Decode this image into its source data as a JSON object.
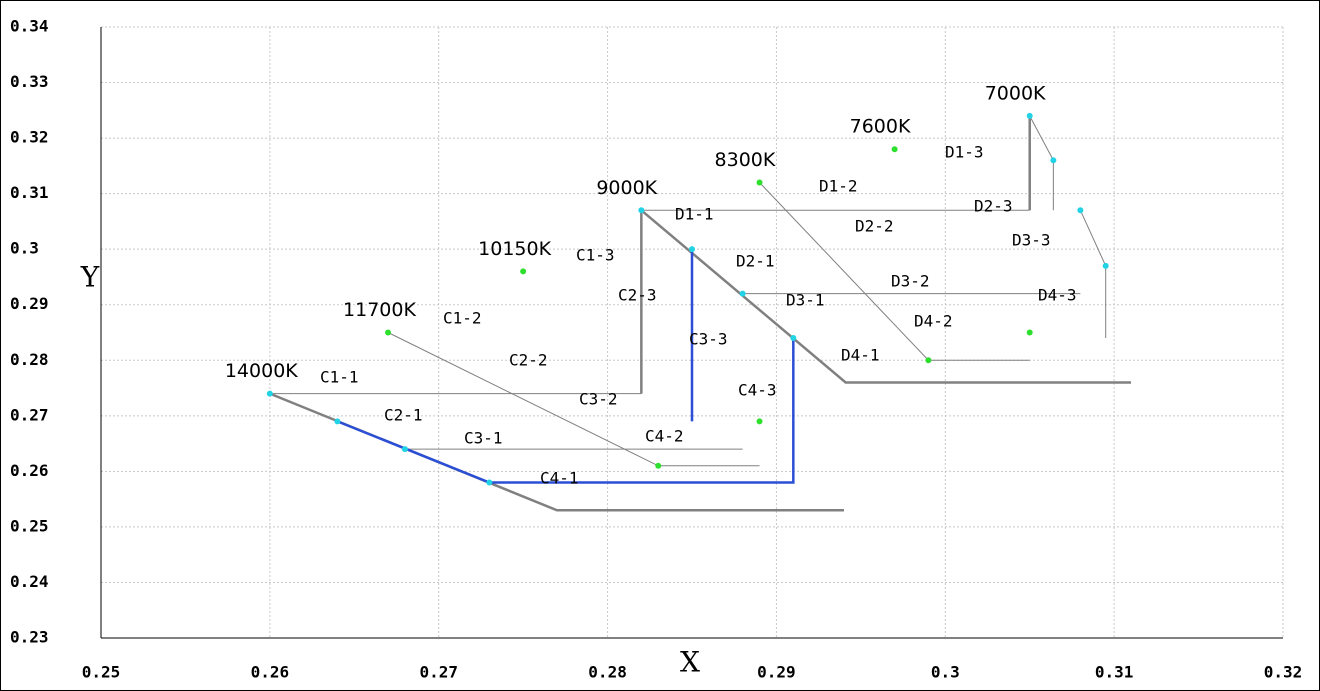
{
  "chart_data": {
    "type": "line",
    "xlabel": "X",
    "ylabel": "Y",
    "xlim": [
      0.25,
      0.32
    ],
    "ylim": [
      0.23,
      0.34
    ],
    "xticks": [
      0.25,
      0.26,
      0.27,
      0.28,
      0.29,
      0.3,
      0.31,
      0.32
    ],
    "yticks": [
      0.23,
      0.24,
      0.25,
      0.26,
      0.27,
      0.28,
      0.29,
      0.3,
      0.31,
      0.32,
      0.33,
      0.34
    ],
    "grid": true,
    "series": [
      {
        "mode": "lines",
        "color": "#808080",
        "width": 2.5,
        "x": [
          0.26,
          0.277,
          0.294
        ],
        "values": [
          0.274,
          0.253,
          0.253
        ]
      },
      {
        "mode": "lines",
        "color": "#808080",
        "width": 2.5,
        "x": [
          0.282,
          0.282
        ],
        "values": [
          0.307,
          0.274
        ]
      },
      {
        "mode": "lines",
        "color": "#808080",
        "width": 1,
        "x": [
          0.26,
          0.282
        ],
        "values": [
          0.274,
          0.274
        ]
      },
      {
        "mode": "lines",
        "color": "#808080",
        "width": 2.5,
        "x": [
          0.282,
          0.2941,
          0.311
        ],
        "values": [
          0.307,
          0.276,
          0.276
        ]
      },
      {
        "mode": "lines",
        "color": "#808080",
        "width": 2.5,
        "x": [
          0.305,
          0.305
        ],
        "values": [
          0.324,
          0.307
        ]
      },
      {
        "mode": "lines",
        "color": "#808080",
        "width": 1,
        "x": [
          0.282,
          0.305
        ],
        "values": [
          0.307,
          0.307
        ]
      },
      {
        "mode": "lines",
        "color": "#808080",
        "width": 1,
        "x": [
          0.305,
          0.3064,
          0.3064
        ],
        "values": [
          0.324,
          0.316,
          0.307
        ]
      },
      {
        "mode": "lines",
        "color": "#808080",
        "width": 1,
        "x": [
          0.308,
          0.3095,
          0.3095
        ],
        "values": [
          0.307,
          0.297,
          0.284
        ]
      },
      {
        "mode": "lines",
        "color": "#808080",
        "width": 1,
        "x": [
          0.267,
          0.283,
          0.289
        ],
        "values": [
          0.285,
          0.261,
          0.261
        ]
      },
      {
        "mode": "lines",
        "color": "#808080",
        "width": 1,
        "x": [
          0.289,
          0.299,
          0.305
        ],
        "values": [
          0.312,
          0.28,
          0.28
        ]
      },
      {
        "mode": "lines",
        "color": "#808080",
        "width": 1,
        "x": [
          0.268,
          0.288
        ],
        "values": [
          0.264,
          0.264
        ]
      },
      {
        "mode": "lines",
        "color": "#808080",
        "width": 1,
        "x": [
          0.288,
          0.308
        ],
        "values": [
          0.292,
          0.292
        ]
      },
      {
        "mode": "lines",
        "color": "#2a4fd6",
        "width": 2.5,
        "x": [
          0.264,
          0.273,
          0.291,
          0.291
        ],
        "values": [
          0.269,
          0.258,
          0.258,
          0.284
        ]
      },
      {
        "mode": "lines",
        "color": "#2a4fd6",
        "width": 2.5,
        "x": [
          0.285,
          0.285
        ],
        "values": [
          0.3,
          0.269
        ]
      },
      {
        "mode": "markers",
        "color": "#22d3e6",
        "x": [
          0.26,
          0.264,
          0.268,
          0.273,
          0.282,
          0.285,
          0.288,
          0.291,
          0.305,
          0.3064,
          0.308,
          0.3095
        ],
        "values": [
          0.274,
          0.269,
          0.264,
          0.258,
          0.307,
          0.3,
          0.292,
          0.284,
          0.324,
          0.316,
          0.307,
          0.297
        ],
        "labels": [
          "14000K",
          null,
          null,
          null,
          "9000K",
          null,
          null,
          null,
          "7000K",
          null,
          null,
          null
        ]
      },
      {
        "mode": "markers",
        "color": "#2ee02e",
        "x": [
          0.267,
          0.275,
          0.289,
          0.297,
          0.283,
          0.289,
          0.299,
          0.305
        ],
        "values": [
          0.285,
          0.296,
          0.312,
          0.318,
          0.261,
          0.269,
          0.28,
          0.285
        ],
        "labels": [
          "11700K",
          "10150K",
          "8300K",
          "7600K",
          null,
          null,
          null,
          null
        ]
      }
    ],
    "annotations": [
      "C1-1",
      "C1-2",
      "C1-3",
      "C2-1",
      "C2-2",
      "C2-3",
      "C3-1",
      "C3-2",
      "C3-3",
      "C4-1",
      "C4-2",
      "C4-3",
      "D1-1",
      "D1-2",
      "D1-3",
      "D2-1",
      "D2-2",
      "D2-3",
      "D3-1",
      "D3-2",
      "D3-3",
      "D4-1",
      "D4-2",
      "D4-3"
    ]
  }
}
